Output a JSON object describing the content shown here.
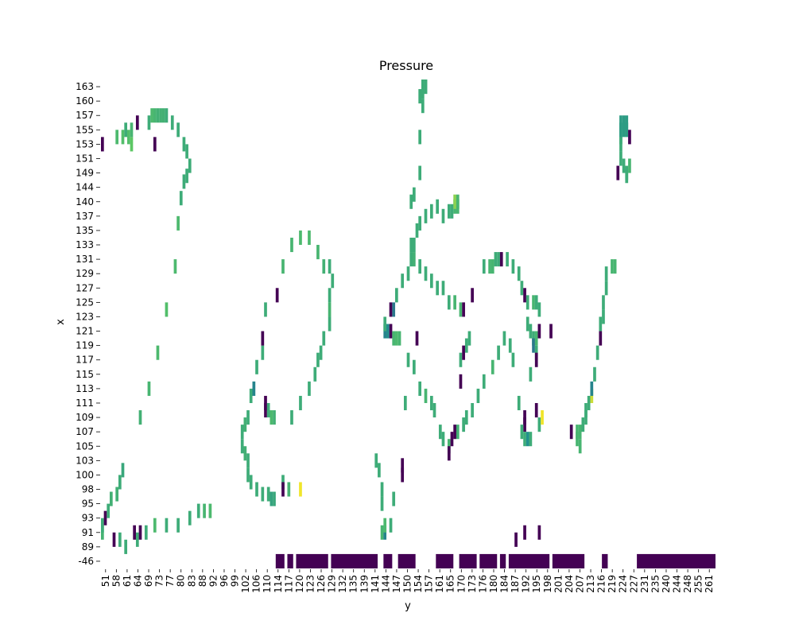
{
  "chart_data": {
    "type": "heatmap",
    "title": "Pressure",
    "xlabel": "y",
    "ylabel": "x",
    "colormap": "viridis",
    "colorbar": false,
    "grid": false,
    "x_tick_labels": [
      "51",
      "58",
      "61",
      "64",
      "69",
      "73",
      "77",
      "80",
      "83",
      "88",
      "92",
      "96",
      "99",
      "102",
      "106",
      "110",
      "114",
      "117",
      "120",
      "123",
      "126",
      "129",
      "132",
      "135",
      "139",
      "141",
      "144",
      "147",
      "150",
      "154",
      "157",
      "161",
      "165",
      "170",
      "173",
      "176",
      "180",
      "184",
      "187",
      "192",
      "195",
      "198",
      "201",
      "204",
      "207",
      "213",
      "216",
      "219",
      "224",
      "227",
      "231",
      "235",
      "240",
      "244",
      "248",
      "255",
      "261"
    ],
    "y_tick_labels": [
      "163",
      "160",
      "157",
      "155",
      "153",
      "151",
      "149",
      "144",
      "140",
      "137",
      "135",
      "133",
      "131",
      "129",
      "127",
      "125",
      "123",
      "121",
      "119",
      "117",
      "115",
      "113",
      "111",
      "109",
      "107",
      "105",
      "103",
      "100",
      "98",
      "95",
      "93",
      "91",
      "89",
      "-46"
    ],
    "x_range": [
      51,
      261
    ],
    "y_rows": 34,
    "value_scale": "relative pressure 0 to 1 (viridis: 0 dark purple, 1 yellow)",
    "cells": [
      [
        51,
        153,
        0.0
      ],
      [
        51,
        91,
        0.65
      ],
      [
        51,
        92,
        0.62
      ],
      [
        52,
        93,
        0.0
      ],
      [
        53,
        94,
        0.62
      ],
      [
        54,
        96,
        0.64
      ],
      [
        56,
        97,
        0.64
      ],
      [
        57,
        99,
        0.62
      ],
      [
        58,
        101,
        0.6
      ],
      [
        56,
        154,
        0.68
      ],
      [
        58,
        154,
        0.7
      ],
      [
        59,
        155,
        0.62
      ],
      [
        60,
        154,
        0.7
      ],
      [
        61,
        153,
        0.74
      ],
      [
        61,
        155,
        0.66
      ],
      [
        63,
        156,
        0.0
      ],
      [
        55,
        90,
        0.0
      ],
      [
        57,
        90,
        0.62
      ],
      [
        59,
        89,
        0.62
      ],
      [
        62,
        91,
        0.0
      ],
      [
        63,
        90,
        0.62
      ],
      [
        64,
        91,
        0.0
      ],
      [
        66,
        91,
        0.62
      ],
      [
        67,
        156,
        0.62
      ],
      [
        68,
        157,
        0.68
      ],
      [
        69,
        157,
        0.66
      ],
      [
        70,
        157,
        0.64
      ],
      [
        71,
        157,
        0.64
      ],
      [
        72,
        157,
        0.64
      ],
      [
        73,
        157,
        0.62
      ],
      [
        69,
        153,
        0.0
      ],
      [
        75,
        156,
        0.62
      ],
      [
        77,
        155,
        0.62
      ],
      [
        79,
        153,
        0.62
      ],
      [
        80,
        152,
        0.62
      ],
      [
        81,
        150,
        0.62
      ],
      [
        80,
        148,
        0.62
      ],
      [
        79,
        146,
        0.62
      ],
      [
        78,
        141,
        0.62
      ],
      [
        77,
        136,
        0.68
      ],
      [
        76,
        130,
        0.68
      ],
      [
        73,
        124,
        0.7
      ],
      [
        70,
        118,
        0.68
      ],
      [
        67,
        113,
        0.66
      ],
      [
        64,
        109,
        0.64
      ],
      [
        69,
        92,
        0.68
      ],
      [
        73,
        92,
        0.62
      ],
      [
        77,
        92,
        0.62
      ],
      [
        81,
        93,
        0.62
      ],
      [
        84,
        94,
        0.62
      ],
      [
        86,
        94,
        0.66
      ],
      [
        88,
        94,
        0.68
      ],
      [
        99,
        107,
        0.62
      ],
      [
        100,
        108,
        0.64
      ],
      [
        101,
        109,
        0.62
      ],
      [
        102,
        112,
        0.62
      ],
      [
        104,
        116,
        0.62
      ],
      [
        106,
        118,
        0.62
      ],
      [
        107,
        124,
        0.62
      ],
      [
        101,
        100,
        0.62
      ],
      [
        102,
        99,
        0.62
      ],
      [
        104,
        98,
        0.62
      ],
      [
        106,
        97,
        0.62
      ],
      [
        108,
        97,
        0.62
      ],
      [
        109,
        96,
        0.58
      ],
      [
        110,
        96,
        0.6
      ],
      [
        113,
        99,
        0.62
      ],
      [
        115,
        98,
        0.65
      ],
      [
        99,
        105,
        0.62
      ],
      [
        100,
        104,
        0.64
      ],
      [
        101,
        103,
        0.62
      ],
      [
        103,
        113,
        0.45
      ],
      [
        106,
        120,
        0.0
      ],
      [
        107,
        111,
        0.0
      ],
      [
        107,
        110,
        0.0
      ],
      [
        108,
        110,
        0.62
      ],
      [
        109,
        109,
        0.68
      ],
      [
        110,
        109,
        0.64
      ],
      [
        111,
        126,
        0.0
      ],
      [
        113,
        130,
        0.66
      ],
      [
        116,
        133,
        0.66
      ],
      [
        119,
        134,
        0.68
      ],
      [
        122,
        134,
        0.68
      ],
      [
        125,
        132,
        0.66
      ],
      [
        127,
        130,
        0.64
      ],
      [
        129,
        130,
        0.62
      ],
      [
        130,
        128,
        0.62
      ],
      [
        129,
        126,
        0.62
      ],
      [
        129,
        124,
        0.66
      ],
      [
        129,
        122,
        0.62
      ],
      [
        127,
        120,
        0.62
      ],
      [
        126,
        118,
        0.62
      ],
      [
        125,
        117,
        0.62
      ],
      [
        124,
        115,
        0.62
      ],
      [
        122,
        113,
        0.62
      ],
      [
        119,
        111,
        0.62
      ],
      [
        116,
        109,
        0.62
      ],
      [
        113,
        98,
        0.0
      ],
      [
        119,
        98,
        0.98
      ],
      [
        145,
        103,
        0.62
      ],
      [
        146,
        101,
        0.62
      ],
      [
        147,
        98,
        0.62
      ],
      [
        147,
        95,
        0.62
      ],
      [
        147,
        91,
        0.66
      ],
      [
        148,
        91,
        0.45
      ],
      [
        148,
        92,
        0.68
      ],
      [
        150,
        92,
        0.62
      ],
      [
        151,
        96,
        0.62
      ],
      [
        148,
        121,
        0.45
      ],
      [
        148,
        122,
        0.62
      ],
      [
        149,
        121,
        0.48
      ],
      [
        150,
        121,
        0.0
      ],
      [
        151,
        120,
        0.66
      ],
      [
        152,
        120,
        0.68
      ],
      [
        153,
        120,
        0.66
      ],
      [
        150,
        124,
        0.0
      ],
      [
        151,
        124,
        0.4
      ],
      [
        152,
        126,
        0.62
      ],
      [
        154,
        128,
        0.62
      ],
      [
        156,
        129,
        0.62
      ],
      [
        157,
        131,
        0.62
      ],
      [
        158,
        133,
        0.62
      ],
      [
        159,
        135,
        0.62
      ],
      [
        160,
        136,
        0.62
      ],
      [
        162,
        137,
        0.62
      ],
      [
        164,
        138,
        0.62
      ],
      [
        166,
        139,
        0.62
      ],
      [
        154,
        102,
        0.0
      ],
      [
        154,
        100,
        0.0
      ],
      [
        155,
        111,
        0.62
      ],
      [
        156,
        117,
        0.62
      ],
      [
        158,
        116,
        0.62
      ],
      [
        159,
        120,
        0.0
      ],
      [
        160,
        113,
        0.62
      ],
      [
        162,
        112,
        0.66
      ],
      [
        164,
        111,
        0.62
      ],
      [
        165,
        110,
        0.62
      ],
      [
        167,
        107,
        0.62
      ],
      [
        168,
        106,
        0.62
      ],
      [
        170,
        105,
        0.66
      ],
      [
        170,
        104,
        0.0
      ],
      [
        171,
        106,
        0.0
      ],
      [
        172,
        107,
        0.0
      ],
      [
        173,
        107,
        0.64
      ],
      [
        175,
        108,
        0.62
      ],
      [
        176,
        109,
        0.62
      ],
      [
        178,
        110,
        0.62
      ],
      [
        180,
        112,
        0.62
      ],
      [
        182,
        114,
        0.62
      ],
      [
        185,
        116,
        0.66
      ],
      [
        187,
        118,
        0.62
      ],
      [
        157,
        133,
        0.62
      ],
      [
        158,
        131,
        0.64
      ],
      [
        160,
        130,
        0.62
      ],
      [
        162,
        129,
        0.62
      ],
      [
        164,
        128,
        0.62
      ],
      [
        166,
        127,
        0.62
      ],
      [
        168,
        127,
        0.62
      ],
      [
        170,
        125,
        0.62
      ],
      [
        172,
        125,
        0.66
      ],
      [
        174,
        124,
        0.66
      ],
      [
        175,
        124,
        0.0
      ],
      [
        160,
        161,
        0.62
      ],
      [
        161,
        162,
        0.62
      ],
      [
        161,
        163,
        0.62
      ],
      [
        162,
        163,
        0.62
      ],
      [
        162,
        164,
        0.62
      ],
      [
        161,
        159,
        0.62
      ],
      [
        160,
        154,
        0.62
      ],
      [
        160,
        149,
        0.62
      ],
      [
        158,
        142,
        0.62
      ],
      [
        157,
        140,
        0.62
      ],
      [
        168,
        137,
        0.62
      ],
      [
        170,
        138,
        0.62
      ],
      [
        172,
        139,
        0.66
      ],
      [
        172,
        140,
        0.82
      ],
      [
        173,
        140,
        0.66
      ],
      [
        173,
        139,
        0.66
      ],
      [
        171,
        138,
        0.62
      ],
      [
        174,
        117,
        0.62
      ],
      [
        176,
        119,
        0.62
      ],
      [
        174,
        114,
        0.0
      ],
      [
        175,
        118,
        0.0
      ],
      [
        177,
        120,
        0.62
      ],
      [
        178,
        126,
        0.0
      ],
      [
        182,
        130,
        0.62
      ],
      [
        184,
        130,
        0.66
      ],
      [
        185,
        130,
        0.66
      ],
      [
        186,
        131,
        0.62
      ],
      [
        187,
        131,
        0.62
      ],
      [
        188,
        131,
        0.0
      ],
      [
        190,
        131,
        0.62
      ],
      [
        192,
        130,
        0.62
      ],
      [
        194,
        129,
        0.62
      ],
      [
        195,
        127,
        0.62
      ],
      [
        196,
        126,
        0.0
      ],
      [
        197,
        125,
        0.62
      ],
      [
        199,
        125,
        0.66
      ],
      [
        200,
        125,
        0.62
      ],
      [
        201,
        124,
        0.62
      ],
      [
        189,
        120,
        0.62
      ],
      [
        191,
        119,
        0.62
      ],
      [
        192,
        117,
        0.62
      ],
      [
        194,
        111,
        0.62
      ],
      [
        196,
        109,
        0.0
      ],
      [
        196,
        108,
        0.0
      ],
      [
        195,
        107,
        0.62
      ],
      [
        196,
        106,
        0.62
      ],
      [
        197,
        106,
        0.5
      ],
      [
        198,
        106,
        0.62
      ],
      [
        200,
        110,
        0.0
      ],
      [
        201,
        108,
        0.62
      ],
      [
        202,
        109,
        0.98
      ],
      [
        197,
        122,
        0.62
      ],
      [
        198,
        121,
        0.62
      ],
      [
        199,
        120,
        0.62
      ],
      [
        199,
        119,
        0.4
      ],
      [
        200,
        120,
        0.66
      ],
      [
        201,
        121,
        0.0
      ],
      [
        200,
        118,
        0.62
      ],
      [
        200,
        117,
        0.0
      ],
      [
        198,
        115,
        0.62
      ],
      [
        205,
        121,
        0.0
      ],
      [
        212,
        107,
        0.0
      ],
      [
        214,
        107,
        0.66
      ],
      [
        214,
        106,
        0.66
      ],
      [
        215,
        105,
        0.66
      ],
      [
        215,
        107,
        0.66
      ],
      [
        216,
        108,
        0.62
      ],
      [
        217,
        109,
        0.62
      ],
      [
        217,
        110,
        0.62
      ],
      [
        218,
        111,
        0.62
      ],
      [
        219,
        112,
        0.92
      ],
      [
        219,
        113,
        0.45
      ],
      [
        220,
        115,
        0.62
      ],
      [
        221,
        118,
        0.62
      ],
      [
        222,
        120,
        0.0
      ],
      [
        222,
        122,
        0.62
      ],
      [
        223,
        123,
        0.62
      ],
      [
        223,
        125,
        0.62
      ],
      [
        224,
        127,
        0.62
      ],
      [
        224,
        129,
        0.62
      ],
      [
        226,
        130,
        0.66
      ],
      [
        227,
        130,
        0.66
      ],
      [
        229,
        153,
        0.62
      ],
      [
        229,
        154,
        0.62
      ],
      [
        229,
        155,
        0.55
      ],
      [
        230,
        155,
        0.55
      ],
      [
        231,
        155,
        0.55
      ],
      [
        231,
        156,
        0.55
      ],
      [
        230,
        156,
        0.55
      ],
      [
        229,
        156,
        0.55
      ],
      [
        232,
        154,
        0.0
      ],
      [
        229,
        151,
        0.62
      ],
      [
        230,
        150,
        0.62
      ],
      [
        231,
        149,
        0.62
      ],
      [
        231,
        148,
        0.62
      ],
      [
        232,
        150,
        0.66
      ],
      [
        228,
        149,
        0.0
      ],
      [
        193,
        90,
        0.0
      ],
      [
        196,
        91,
        0.0
      ],
      [
        201,
        91,
        0.0
      ]
    ],
    "bottom_row": {
      "label": "-46",
      "value": 0.0,
      "segments": [
        [
          111,
          113
        ],
        [
          115,
          116
        ],
        [
          118,
          128
        ],
        [
          130,
          145
        ],
        [
          148,
          150
        ],
        [
          153,
          158
        ],
        [
          166,
          171
        ],
        [
          174,
          179
        ],
        [
          181,
          186
        ],
        [
          188,
          189
        ],
        [
          191,
          204
        ],
        [
          206,
          216
        ],
        [
          223,
          224
        ],
        [
          235,
          261
        ]
      ]
    }
  }
}
